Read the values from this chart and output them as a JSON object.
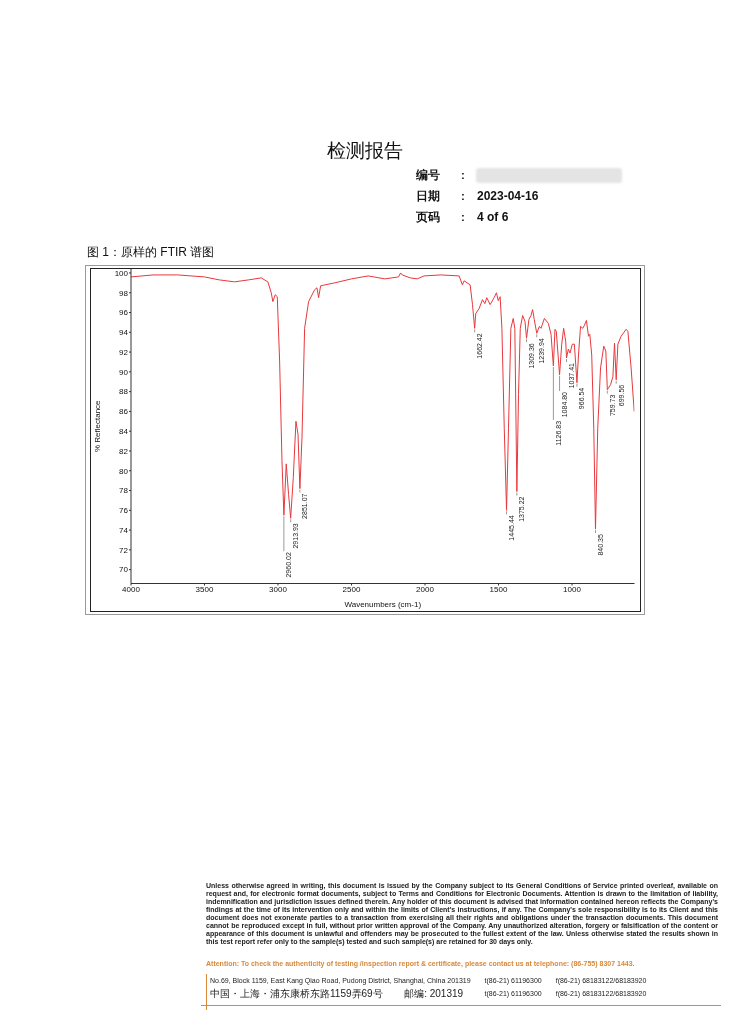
{
  "chart_data": {
    "type": "line",
    "title": "图 1：原样的 FTIR 谱图",
    "xlabel": "Wavenumbers (cm-1)",
    "ylabel": "% Reflectance",
    "x": [
      4000,
      3850,
      3682,
      3500,
      3400,
      3296,
      3200,
      3114,
      3069,
      3046,
      3035,
      3019,
      3005,
      2989,
      2973,
      2960.02,
      2944,
      2928,
      2913.93,
      2896,
      2878,
      2864,
      2851.07,
      2837,
      2819,
      2792,
      2751,
      2735,
      2724,
      2710,
      2614,
      2500,
      2387,
      2273,
      2180,
      2166,
      2155,
      2100,
      2053,
      2007,
      1893,
      1768,
      1746,
      1734,
      1693,
      1677,
      1662.42,
      1655,
      1632,
      1609,
      1593,
      1580,
      1557,
      1530,
      1514,
      1502,
      1489,
      1477,
      1461,
      1445.44,
      1432,
      1416,
      1400,
      1389,
      1375.22,
      1364,
      1352,
      1336,
      1320,
      1309.36,
      1293,
      1279,
      1268,
      1257,
      1239.94,
      1222,
      1211,
      1188,
      1161,
      1143,
      1126.83,
      1116,
      1107,
      1084.8,
      1070,
      1057,
      1043,
      1037.41,
      1025,
      1014,
      998,
      984,
      966.54,
      956,
      942,
      927,
      916,
      902,
      888,
      879,
      866,
      852,
      840.35,
      825,
      806,
      784,
      770,
      759.73,
      738,
      722,
      711,
      699.56,
      688,
      666,
      632,
      620,
      598,
      577
    ],
    "series": [
      {
        "color": "#e8383d",
        "values": [
          99.6,
          99.8,
          99.8,
          99.6,
          99.3,
          99.1,
          99.3,
          99.5,
          99.1,
          98.0,
          97.1,
          97.8,
          97.6,
          91.1,
          81.0,
          75.5,
          80.7,
          77.6,
          75.2,
          79.3,
          85.0,
          83.7,
          78.2,
          83.3,
          94.4,
          97.1,
          98.3,
          98.5,
          97.5,
          98.7,
          99.0,
          99.4,
          99.7,
          99.4,
          99.6,
          100.0,
          99.8,
          99.5,
          99.4,
          99.7,
          99.8,
          99.7,
          98.8,
          99.2,
          98.8,
          96.8,
          94.4,
          95.9,
          96.4,
          97.3,
          96.9,
          97.5,
          96.8,
          97.5,
          98.0,
          97.2,
          97.6,
          94.4,
          84.3,
          76.0,
          84.3,
          94.4,
          95.4,
          94.4,
          77.9,
          87.7,
          94.4,
          95.7,
          95.1,
          93.4,
          95.3,
          95.7,
          96.3,
          95.3,
          93.9,
          94.6,
          94.4,
          95.4,
          94.9,
          93.8,
          90.6,
          94.3,
          94.1,
          89.7,
          92.8,
          94.4,
          93.1,
          91.4,
          92.3,
          91.9,
          92.8,
          92.8,
          88.9,
          91.7,
          94.6,
          94.4,
          94.7,
          95.2,
          93.6,
          93.8,
          91.7,
          84.3,
          74.1,
          84.3,
          90.4,
          92.6,
          92.1,
          88.2,
          88.7,
          89.5,
          92.9,
          89.2,
          92.8,
          93.6,
          94.3,
          94.1,
          90.4,
          86.0
        ]
      }
    ],
    "xlim": [
      4000,
      575
    ],
    "ylim": [
      68.6,
      100.4
    ],
    "xticks": [
      4000,
      3500,
      3000,
      2500,
      2000,
      1500,
      1000
    ],
    "yticks": [
      70,
      72,
      74,
      76,
      78,
      80,
      82,
      84,
      86,
      88,
      90,
      92,
      94,
      96,
      98,
      100
    ],
    "marker": "none",
    "line_style": "solid",
    "annotations": [
      "检测报告",
      "编号 :",
      "日期 : 2023-04-16",
      "页码 : 4 of 6",
      {
        "text": "2960.02",
        "x": 2960.02,
        "y": 75.5
      },
      {
        "text": "2913.93",
        "x": 2913.93,
        "y": 75.2
      },
      {
        "text": "2851.07",
        "x": 2851.07,
        "y": 78.2
      },
      {
        "text": "1662.42",
        "x": 1662.42,
        "y": 94.4
      },
      {
        "text": "1445.44",
        "x": 1445.44,
        "y": 76.0
      },
      {
        "text": "1375.22",
        "x": 1375.22,
        "y": 77.9
      },
      {
        "text": "1309.36",
        "x": 1309.36,
        "y": 93.4
      },
      {
        "text": "1239.94",
        "x": 1239.94,
        "y": 93.9
      },
      {
        "text": "1126.83",
        "x": 1126.83,
        "y": 90.6
      },
      {
        "text": "1084.80",
        "x": 1084.8,
        "y": 89.7
      },
      {
        "text": "1037.41",
        "x": 1037.41,
        "y": 91.4
      },
      {
        "text": "966.54",
        "x": 966.54,
        "y": 88.9
      },
      {
        "text": "840.35",
        "x": 840.35,
        "y": 74.1
      },
      {
        "text": "759.73",
        "x": 759.73,
        "y": 88.2
      },
      {
        "text": "699.56",
        "x": 699.56,
        "y": 89.2
      },
      "Unless otherwise agreed in writing, this document is issued by the Company subject to its General Conditions of Service printed overleaf, available on request and, for electronic format documents, subject to Terms and Conditions for Electronic Documents. Attention is drawn to the limitation of liability, indemnification and jurisdiction issues defined therein. Any holder of this document is advised that information contained hereon reflects the Company's findings at the time of its intervention only and within the limits of Client's instructions, if any. The Company's sole responsibility is to its Client and this document does not exonerate parties to a transaction from exercising all their rights and obligations under the transaction documents. This document cannot be reproduced except in full, without prior written approval of the Company. Any unauthorized alteration, forgery or falsification of the content or appearance of this document is unlawful and offenders may be prosecuted to the fullest extent of the law. Unless otherwise stated the results shown in this test report refer only to the sample(s) tested and such sample(s) are retained for 30 days only.",
      "Attention: To check the authenticity of testing /inspection report & certificate, please contact us at telephone: (86-755) 8307 1443.",
      "No.69, Block 1159, East Kang Qiao Road, Pudong District, Shanghai, China  201319",
      "t(86-21) 61196300",
      "f(86-21) 68183122/68183920",
      "中国・上海・浦东康桥东路1159弄69号",
      "邮编: 201319",
      "t(86-21) 61196300",
      "f(86-21) 68183122/68183920"
    ]
  }
}
